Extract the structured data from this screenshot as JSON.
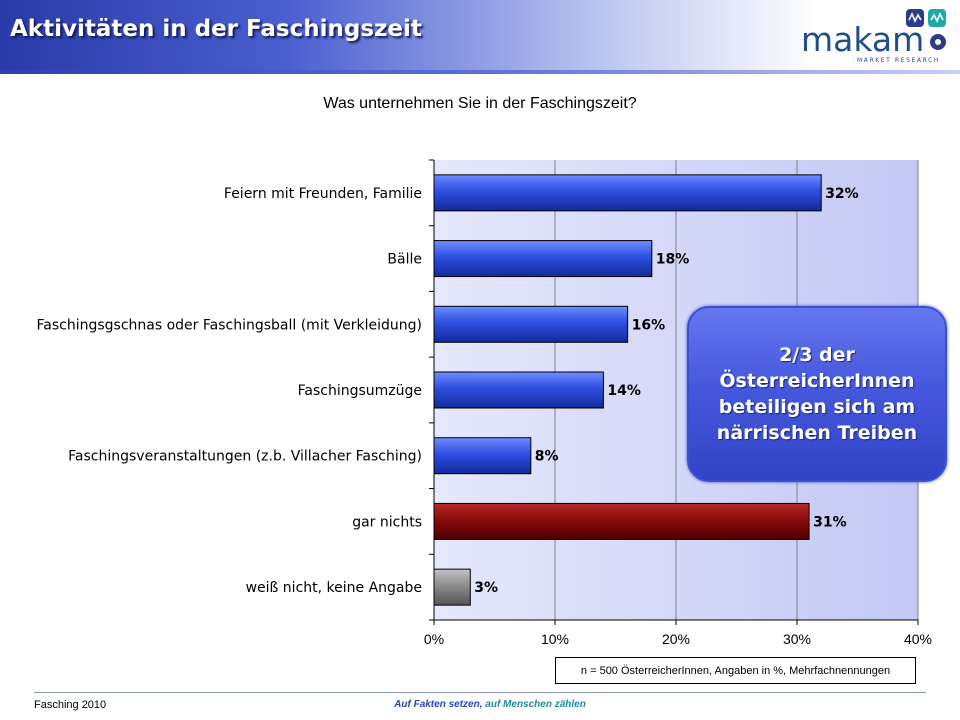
{
  "header": {
    "title": "Aktivitäten in der Faschingszeit",
    "logo_word": "makam",
    "logo_sub": "MARKET RESEARCH"
  },
  "chart_data": {
    "type": "bar",
    "orientation": "horizontal",
    "title": "Was unternehmen Sie in der Faschingszeit?",
    "categories": [
      "Feiern mit Freunden, Familie",
      "Bälle",
      "Faschingsgschnas oder Faschingsball (mit Verkleidung)",
      "Faschingsumzüge",
      "Faschingsveranstaltungen (z.b. Villacher Fasching)",
      "gar nichts",
      "weiß nicht, keine Angabe"
    ],
    "values": [
      32,
      18,
      16,
      14,
      8,
      31,
      3
    ],
    "value_labels": [
      "32%",
      "18%",
      "16%",
      "14%",
      "8%",
      "31%",
      "3%"
    ],
    "bar_colors": [
      "#2e4fe0",
      "#2e4fe0",
      "#2e4fe0",
      "#2e4fe0",
      "#2e4fe0",
      "#8a0c0c",
      "#8c8c8c"
    ],
    "xlim": [
      0,
      40
    ],
    "xticks": [
      0,
      10,
      20,
      30,
      40
    ],
    "xtick_labels": [
      "0%",
      "10%",
      "20%",
      "30%",
      "40%"
    ],
    "grid": true,
    "legend": "none",
    "plot_background": "#c9cdf6"
  },
  "callout": {
    "text": "2/3 der\nÖsterreicherInnen\nbeteiligen sich am\nnärrischen Treiben"
  },
  "note": "n = 500 ÖsterreicherInnen, Angaben in  %,  Mehrfachnennungen",
  "footer": {
    "left": "Fasching 2010",
    "center_part1": "Auf Fakten setzen,",
    "center_part2": " auf Menschen zählen"
  }
}
